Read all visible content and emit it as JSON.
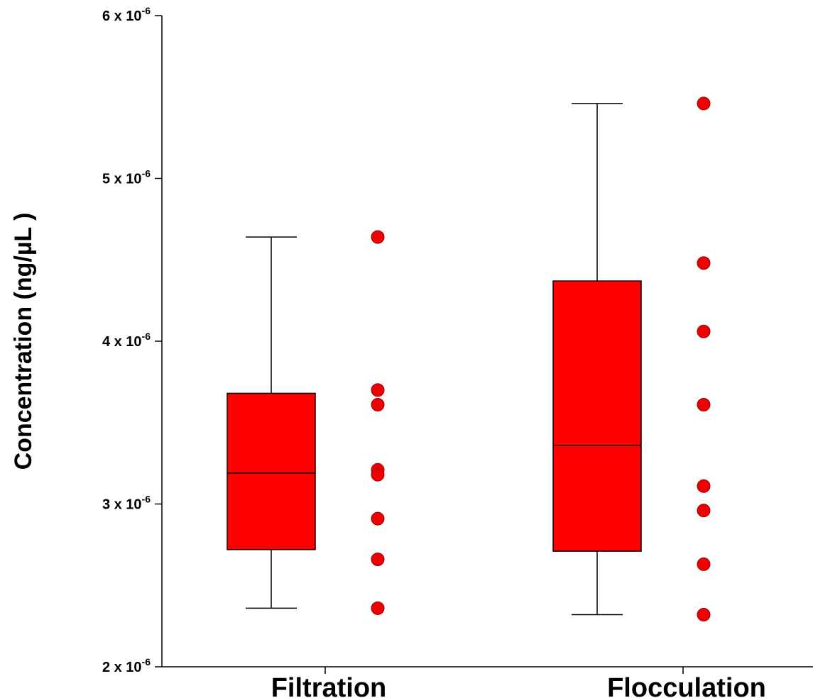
{
  "chart_data": {
    "type": "box",
    "title": "",
    "xlabel": "",
    "ylabel": "Concentration (ng/µL )",
    "ylim": [
      2e-06,
      6e-06
    ],
    "yticks": [
      {
        "value": 2e-06,
        "base": "2 x 10",
        "exp": "-6"
      },
      {
        "value": 3e-06,
        "base": "3 x 10",
        "exp": "-6"
      },
      {
        "value": 4e-06,
        "base": "4 x 10",
        "exp": "-6"
      },
      {
        "value": 5e-06,
        "base": "5 x 10",
        "exp": "-6"
      },
      {
        "value": 6e-06,
        "base": "6 x 10",
        "exp": "-6"
      }
    ],
    "categories": [
      "Filtration",
      "Flocculation"
    ],
    "series": [
      {
        "name": "Filtration",
        "whisker_low": 2.36e-06,
        "q1": 2.72e-06,
        "median": 3.19e-06,
        "q3": 3.68e-06,
        "whisker_high": 4.64e-06,
        "points": [
          4.64e-06,
          3.7e-06,
          3.61e-06,
          3.21e-06,
          3.18e-06,
          2.91e-06,
          2.66e-06,
          2.36e-06
        ]
      },
      {
        "name": "Flocculation",
        "whisker_low": 2.32e-06,
        "q1": 2.71e-06,
        "median": 3.36e-06,
        "q3": 4.37e-06,
        "whisker_high": 5.46e-06,
        "points": [
          5.46e-06,
          4.48e-06,
          4.06e-06,
          3.61e-06,
          3.11e-06,
          2.96e-06,
          2.63e-06,
          2.32e-06
        ]
      }
    ],
    "colors": {
      "box_fill": "#ff0000",
      "point_fill": "#ee0000",
      "stroke": "#000000"
    }
  }
}
